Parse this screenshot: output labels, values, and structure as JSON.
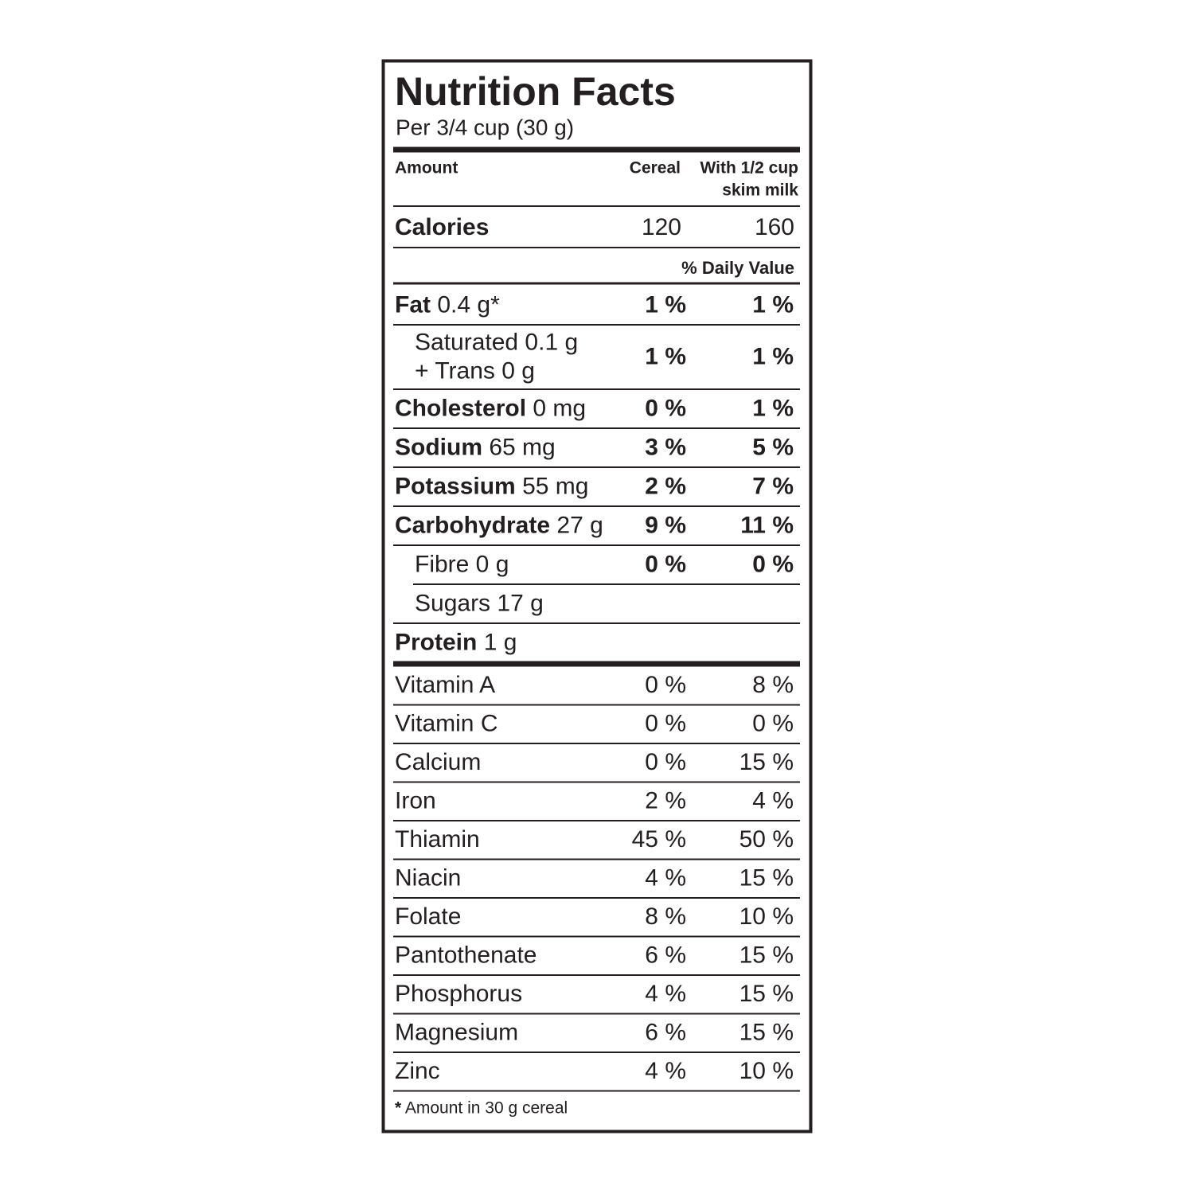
{
  "label": {
    "title": "Nutrition Facts",
    "serving": "Per 3/4 cup (30 g)",
    "header": {
      "amount": "Amount",
      "cereal": "Cereal",
      "milk": [
        "With 1/2 cup",
        "skim milk"
      ]
    },
    "calories": {
      "name": "Calories",
      "cereal": 120,
      "milk": 160
    },
    "daily_value": "% Daily Value",
    "nutrients": [
      {
        "lines": [
          {
            "name": "Fat",
            "amount": "0.4 g*"
          }
        ],
        "indent": false,
        "cereal": "1 %",
        "milk": "1 %"
      },
      {
        "lines": [
          {
            "name": "",
            "amount": "Saturated 0.1 g"
          },
          {
            "name": "",
            "amount": "+ Trans 0 g"
          }
        ],
        "indent": true,
        "cereal": "1 %",
        "milk": "1 %"
      },
      {
        "lines": [
          {
            "name": "Cholesterol",
            "amount": "0 mg"
          }
        ],
        "indent": false,
        "cereal": "0 %",
        "milk": "1 %"
      },
      {
        "lines": [
          {
            "name": "Sodium",
            "amount": "65 mg"
          }
        ],
        "indent": false,
        "cereal": "3 %",
        "milk": "5 %"
      },
      {
        "lines": [
          {
            "name": "Potassium",
            "amount": "55 mg"
          }
        ],
        "indent": false,
        "cereal": "2 %",
        "milk": "7 %"
      },
      {
        "lines": [
          {
            "name": "Carbohydrate",
            "amount": "27 g"
          }
        ],
        "indent": false,
        "cereal": "9 %",
        "milk": "11 %"
      },
      {
        "lines": [
          {
            "name": "",
            "amount": "Fibre 0 g"
          }
        ],
        "indent": true,
        "cereal": "0 %",
        "milk": "0 %"
      },
      {
        "lines": [
          {
            "name": "",
            "amount": "Sugars 17 g"
          }
        ],
        "indent": true,
        "cereal": null,
        "milk": null
      },
      {
        "lines": [
          {
            "name": "Protein",
            "amount": "1 g"
          }
        ],
        "indent": false,
        "cereal": null,
        "milk": null
      }
    ],
    "vitamins": [
      {
        "name": "Vitamin A",
        "cereal": "0 %",
        "milk": "8 %"
      },
      {
        "name": "Vitamin C",
        "cereal": "0 %",
        "milk": "0 %"
      },
      {
        "name": "Calcium",
        "cereal": "0 %",
        "milk": "15 %"
      },
      {
        "name": "Iron",
        "cereal": "2 %",
        "milk": "4 %"
      },
      {
        "name": "Thiamin",
        "cereal": "45 %",
        "milk": "50 %"
      },
      {
        "name": "Niacin",
        "cereal": "4 %",
        "milk": "15 %"
      },
      {
        "name": "Folate",
        "cereal": "8 %",
        "milk": "10 %"
      },
      {
        "name": "Pantothenate",
        "cereal": "6 %",
        "milk": "15 %"
      },
      {
        "name": "Phosphorus",
        "cereal": "4 %",
        "milk": "15 %"
      },
      {
        "name": "Magnesium",
        "cereal": "6 %",
        "milk": "15 %"
      },
      {
        "name": "Zinc",
        "cereal": "4 %",
        "milk": "10 %"
      }
    ],
    "footnote": {
      "mark": "*",
      "text": "Amount in 30 g cereal"
    }
  }
}
